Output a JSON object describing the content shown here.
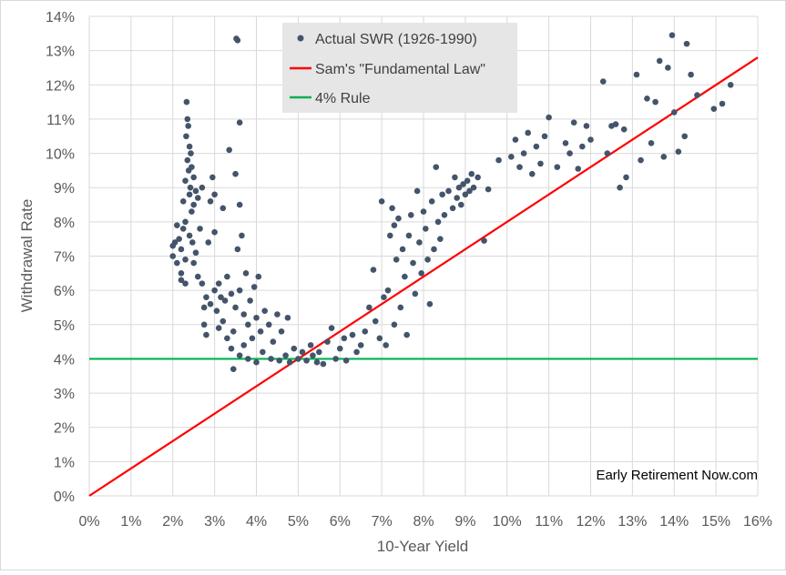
{
  "chart_data": {
    "type": "scatter",
    "xlabel": "10-Year Yield",
    "ylabel": "Withdrawal Rate",
    "xlim": [
      0,
      16
    ],
    "ylim": [
      0,
      14
    ],
    "x_ticks": [
      "0%",
      "1%",
      "2%",
      "3%",
      "4%",
      "5%",
      "6%",
      "7%",
      "8%",
      "9%",
      "10%",
      "11%",
      "12%",
      "13%",
      "14%",
      "15%",
      "16%"
    ],
    "y_ticks": [
      "0%",
      "1%",
      "2%",
      "3%",
      "4%",
      "5%",
      "6%",
      "7%",
      "8%",
      "9%",
      "10%",
      "11%",
      "12%",
      "13%",
      "14%"
    ],
    "grid": "both",
    "legend_position": "top-center",
    "annotation": "Early Retirement Now.com",
    "series": [
      {
        "name": "Actual SWR (1926-1990)",
        "kind": "scatter",
        "color": "#44546a",
        "points": [
          [
            2.0,
            7.3
          ],
          [
            2.0,
            7.0
          ],
          [
            2.05,
            7.4
          ],
          [
            2.1,
            7.9
          ],
          [
            2.1,
            6.8
          ],
          [
            2.15,
            7.5
          ],
          [
            2.2,
            7.2
          ],
          [
            2.2,
            6.5
          ],
          [
            2.2,
            6.3
          ],
          [
            2.25,
            7.8
          ],
          [
            2.25,
            8.6
          ],
          [
            2.3,
            9.2
          ],
          [
            2.3,
            8.0
          ],
          [
            2.3,
            6.9
          ],
          [
            2.3,
            6.2
          ],
          [
            2.32,
            10.5
          ],
          [
            2.33,
            11.5
          ],
          [
            2.35,
            11.0
          ],
          [
            2.35,
            9.8
          ],
          [
            2.37,
            10.8
          ],
          [
            2.38,
            9.5
          ],
          [
            2.4,
            10.2
          ],
          [
            2.4,
            8.8
          ],
          [
            2.4,
            7.6
          ],
          [
            2.42,
            9.0
          ],
          [
            2.43,
            10.0
          ],
          [
            2.45,
            9.6
          ],
          [
            2.45,
            8.3
          ],
          [
            2.47,
            7.4
          ],
          [
            2.5,
            9.3
          ],
          [
            2.5,
            8.5
          ],
          [
            2.5,
            6.8
          ],
          [
            2.55,
            8.9
          ],
          [
            2.55,
            7.1
          ],
          [
            2.6,
            8.7
          ],
          [
            2.6,
            6.4
          ],
          [
            2.65,
            7.8
          ],
          [
            2.7,
            9.0
          ],
          [
            2.7,
            6.2
          ],
          [
            2.75,
            5.5
          ],
          [
            2.75,
            5.0
          ],
          [
            2.8,
            4.7
          ],
          [
            2.8,
            5.8
          ],
          [
            2.85,
            7.4
          ],
          [
            2.9,
            8.6
          ],
          [
            2.9,
            5.6
          ],
          [
            2.95,
            9.3
          ],
          [
            3.0,
            8.8
          ],
          [
            3.0,
            7.7
          ],
          [
            3.0,
            6.0
          ],
          [
            3.05,
            5.4
          ],
          [
            3.1,
            6.2
          ],
          [
            3.1,
            4.9
          ],
          [
            3.15,
            5.8
          ],
          [
            3.2,
            8.4
          ],
          [
            3.2,
            5.1
          ],
          [
            3.25,
            5.7
          ],
          [
            3.3,
            6.4
          ],
          [
            3.3,
            4.6
          ],
          [
            3.35,
            10.1
          ],
          [
            3.4,
            4.3
          ],
          [
            3.4,
            5.9
          ],
          [
            3.45,
            3.7
          ],
          [
            3.45,
            4.8
          ],
          [
            3.5,
            9.4
          ],
          [
            3.5,
            5.5
          ],
          [
            3.52,
            13.35
          ],
          [
            3.55,
            13.3
          ],
          [
            3.55,
            7.2
          ],
          [
            3.6,
            10.9
          ],
          [
            3.6,
            8.5
          ],
          [
            3.6,
            6.0
          ],
          [
            3.6,
            4.1
          ],
          [
            3.65,
            7.6
          ],
          [
            3.7,
            5.3
          ],
          [
            3.7,
            4.4
          ],
          [
            3.75,
            6.5
          ],
          [
            3.8,
            5.0
          ],
          [
            3.8,
            4.0
          ],
          [
            3.85,
            5.7
          ],
          [
            3.9,
            4.6
          ],
          [
            3.95,
            6.1
          ],
          [
            4.0,
            5.2
          ],
          [
            4.0,
            3.9
          ],
          [
            4.05,
            6.4
          ],
          [
            4.1,
            4.8
          ],
          [
            4.15,
            4.2
          ],
          [
            4.2,
            5.4
          ],
          [
            4.3,
            5.0
          ],
          [
            4.35,
            4.0
          ],
          [
            4.4,
            4.5
          ],
          [
            4.5,
            5.3
          ],
          [
            4.55,
            3.95
          ],
          [
            4.6,
            4.8
          ],
          [
            4.7,
            4.1
          ],
          [
            4.75,
            5.2
          ],
          [
            4.8,
            3.9
          ],
          [
            4.9,
            4.3
          ],
          [
            5.0,
            4.0
          ],
          [
            5.1,
            4.2
          ],
          [
            5.2,
            3.95
          ],
          [
            5.3,
            4.4
          ],
          [
            5.35,
            4.1
          ],
          [
            5.45,
            3.9
          ],
          [
            5.5,
            4.2
          ],
          [
            5.6,
            3.85
          ],
          [
            5.7,
            4.5
          ],
          [
            5.8,
            4.9
          ],
          [
            5.9,
            4.0
          ],
          [
            6.0,
            4.3
          ],
          [
            6.1,
            4.6
          ],
          [
            6.15,
            3.95
          ],
          [
            6.3,
            4.7
          ],
          [
            6.4,
            4.2
          ],
          [
            6.5,
            4.4
          ],
          [
            6.6,
            4.8
          ],
          [
            6.7,
            5.5
          ],
          [
            6.8,
            6.6
          ],
          [
            6.85,
            5.1
          ],
          [
            6.95,
            4.6
          ],
          [
            7.0,
            8.6
          ],
          [
            7.05,
            5.8
          ],
          [
            7.1,
            4.4
          ],
          [
            7.15,
            6.0
          ],
          [
            7.2,
            7.6
          ],
          [
            7.25,
            8.4
          ],
          [
            7.3,
            7.9
          ],
          [
            7.3,
            5.0
          ],
          [
            7.35,
            6.9
          ],
          [
            7.4,
            8.1
          ],
          [
            7.45,
            5.5
          ],
          [
            7.5,
            7.2
          ],
          [
            7.55,
            6.4
          ],
          [
            7.6,
            4.7
          ],
          [
            7.65,
            7.6
          ],
          [
            7.7,
            8.2
          ],
          [
            7.75,
            6.8
          ],
          [
            7.8,
            5.9
          ],
          [
            7.85,
            8.9
          ],
          [
            7.9,
            7.4
          ],
          [
            7.95,
            6.5
          ],
          [
            8.0,
            8.3
          ],
          [
            8.05,
            7.8
          ],
          [
            8.1,
            6.9
          ],
          [
            8.15,
            5.6
          ],
          [
            8.2,
            8.6
          ],
          [
            8.25,
            7.2
          ],
          [
            8.3,
            9.6
          ],
          [
            8.35,
            8.0
          ],
          [
            8.4,
            7.5
          ],
          [
            8.45,
            8.8
          ],
          [
            8.5,
            8.2
          ],
          [
            8.6,
            8.9
          ],
          [
            8.7,
            8.4
          ],
          [
            8.75,
            9.3
          ],
          [
            8.8,
            8.7
          ],
          [
            8.85,
            9.0
          ],
          [
            8.9,
            8.5
          ],
          [
            8.95,
            9.1
          ],
          [
            9.0,
            8.8
          ],
          [
            9.05,
            9.2
          ],
          [
            9.1,
            8.9
          ],
          [
            9.15,
            9.4
          ],
          [
            9.2,
            9.0
          ],
          [
            9.3,
            9.3
          ],
          [
            9.45,
            7.45
          ],
          [
            9.55,
            8.95
          ],
          [
            9.8,
            9.8
          ],
          [
            10.1,
            9.9
          ],
          [
            10.2,
            10.4
          ],
          [
            10.3,
            9.6
          ],
          [
            10.4,
            10.0
          ],
          [
            10.5,
            10.6
          ],
          [
            10.6,
            9.4
          ],
          [
            10.7,
            10.2
          ],
          [
            10.8,
            9.7
          ],
          [
            10.9,
            10.5
          ],
          [
            11.0,
            11.05
          ],
          [
            11.2,
            9.6
          ],
          [
            11.4,
            10.3
          ],
          [
            11.5,
            10.0
          ],
          [
            11.6,
            10.9
          ],
          [
            11.7,
            9.55
          ],
          [
            11.8,
            10.2
          ],
          [
            11.9,
            10.8
          ],
          [
            12.0,
            10.4
          ],
          [
            12.3,
            12.1
          ],
          [
            12.4,
            10.0
          ],
          [
            12.5,
            10.8
          ],
          [
            12.6,
            10.85
          ],
          [
            12.7,
            9.0
          ],
          [
            12.8,
            10.7
          ],
          [
            12.85,
            9.3
          ],
          [
            13.1,
            12.3
          ],
          [
            13.2,
            9.8
          ],
          [
            13.35,
            11.6
          ],
          [
            13.45,
            10.3
          ],
          [
            13.55,
            11.5
          ],
          [
            13.65,
            12.7
          ],
          [
            13.75,
            9.9
          ],
          [
            13.85,
            12.5
          ],
          [
            13.95,
            13.45
          ],
          [
            14.0,
            11.2
          ],
          [
            14.1,
            10.05
          ],
          [
            14.25,
            10.5
          ],
          [
            14.3,
            13.2
          ],
          [
            14.4,
            12.3
          ],
          [
            14.55,
            11.7
          ],
          [
            14.95,
            11.3
          ],
          [
            15.15,
            11.45
          ],
          [
            15.35,
            12.0
          ]
        ]
      },
      {
        "name": "Sam's \"Fundamental Law\"",
        "kind": "line",
        "color": "#ff0000",
        "x": [
          0,
          16
        ],
        "y": [
          0,
          12.8
        ]
      },
      {
        "name": "4% Rule",
        "kind": "line",
        "color": "#00b050",
        "x": [
          0,
          16
        ],
        "y": [
          4,
          4
        ]
      }
    ]
  }
}
